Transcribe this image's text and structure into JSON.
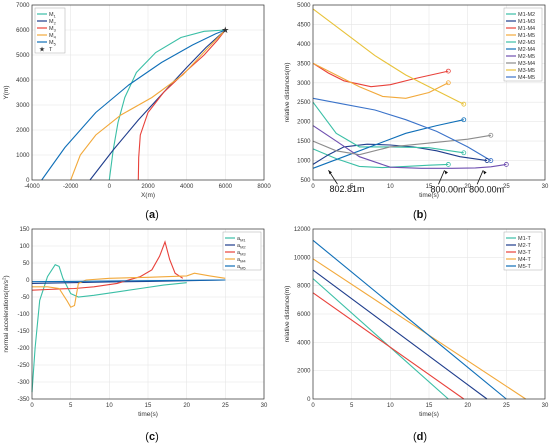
{
  "panels": [
    {
      "id": "a",
      "label": "(a)",
      "chart_data": {
        "type": "line",
        "xlabel": "X(m)",
        "ylabel": "Y(m)",
        "xlim": [
          -4000,
          8000
        ],
        "ylim": [
          0,
          7000
        ],
        "xticks": [
          -4000,
          -2000,
          0,
          2000,
          4000,
          6000,
          8000
        ],
        "yticks": [
          0,
          1000,
          2000,
          3000,
          4000,
          5000,
          6000,
          7000
        ],
        "legend_position": "top-left",
        "series": [
          {
            "name": "M1",
            "color": "#3bbfa6",
            "x": [
              0,
              200,
              450,
              800,
              1400,
              2400,
              3700,
              4900,
              6000
            ],
            "y": [
              0,
              1200,
              2300,
              3300,
              4300,
              5100,
              5700,
              5950,
              6000
            ]
          },
          {
            "name": "M2",
            "color": "#1f3d8c",
            "x": [
              -1000,
              200,
              1500,
              2800,
              4000,
              5000,
              6000
            ],
            "y": [
              0,
              1200,
              2400,
              3500,
              4500,
              5300,
              6000
            ]
          },
          {
            "name": "M3",
            "color": "#e8413a",
            "x": [
              1500,
              1520,
              1600,
              2000,
              2800,
              3900,
              4900,
              5600,
              6000
            ],
            "y": [
              0,
              900,
              1800,
              2700,
              3500,
              4300,
              5000,
              5600,
              6000
            ]
          },
          {
            "name": "M4",
            "color": "#f2a93b",
            "x": [
              -2000,
              -1500,
              -700,
              600,
              2200,
              3800,
              5000,
              6000
            ],
            "y": [
              0,
              1000,
              1800,
              2600,
              3300,
              4200,
              5200,
              6000
            ]
          },
          {
            "name": "M5",
            "color": "#0f6fb8",
            "x": [
              -3500,
              -2300,
              -700,
              1000,
              2700,
              4300,
              5500,
              6000
            ],
            "y": [
              0,
              1300,
              2700,
              3800,
              4700,
              5400,
              5850,
              6000
            ]
          }
        ],
        "target": {
          "name": "T",
          "x": 6000,
          "y": 6000
        }
      }
    },
    {
      "id": "b",
      "label": "(b)",
      "chart_data": {
        "type": "line",
        "xlabel": "time(s)",
        "ylabel": "relative distances(m)",
        "xlim": [
          0,
          30
        ],
        "ylim": [
          500,
          5000
        ],
        "xticks": [
          0,
          5,
          10,
          15,
          20,
          25,
          30
        ],
        "yticks": [
          500,
          1000,
          1500,
          2000,
          2500,
          3000,
          3500,
          4000,
          4500,
          5000
        ],
        "legend_position": "top-right",
        "series": [
          {
            "name": "M1-M2",
            "color": "#3bbfa6",
            "x": [
              0,
              3,
              6,
              9,
              12,
              15,
              17.5
            ],
            "y": [
              1300,
              1050,
              850,
              820,
              850,
              880,
              900
            ]
          },
          {
            "name": "M1-M3",
            "color": "#1f3d8c",
            "x": [
              0,
              2,
              4,
              7,
              10,
              13,
              16,
              19,
              22.5
            ],
            "y": [
              900,
              1150,
              1350,
              1420,
              1400,
              1350,
              1250,
              1100,
              1000
            ]
          },
          {
            "name": "M1-M4",
            "color": "#e8413a",
            "x": [
              0,
              2,
              4,
              7.5,
              10,
              13,
              17.5
            ],
            "y": [
              3500,
              3250,
              3050,
              2900,
              2950,
              3100,
              3300
            ]
          },
          {
            "name": "M1-M5",
            "color": "#f2a93b",
            "x": [
              0,
              3,
              6,
              9,
              12,
              15,
              17.5
            ],
            "y": [
              3500,
              3200,
              2900,
              2650,
              2600,
              2750,
              3000
            ]
          },
          {
            "name": "M2-M3",
            "color": "#3bbfa6",
            "x": [
              0,
              3,
              6,
              10,
              15,
              19.5
            ],
            "y": [
              2500,
              1700,
              1350,
              1350,
              1330,
              1200
            ]
          },
          {
            "name": "M2-M4",
            "color": "#0f6fb8",
            "x": [
              0,
              4,
              8,
              12,
              16,
              19.5
            ],
            "y": [
              800,
              1100,
              1400,
              1700,
              1900,
              2050
            ]
          },
          {
            "name": "M2-M5",
            "color": "#6f4fb0",
            "x": [
              0,
              3,
              6,
              10,
              14,
              18,
              21,
              23,
              25
            ],
            "y": [
              1900,
              1500,
              1100,
              830,
              800,
              800,
              810,
              840,
              900
            ]
          },
          {
            "name": "M3-M4",
            "color": "#8c8c8c",
            "x": [
              0,
              3,
              6,
              10,
              15,
              20,
              23
            ],
            "y": [
              1500,
              1250,
              1150,
              1350,
              1450,
              1550,
              1650
            ]
          },
          {
            "name": "M3-M5",
            "color": "#e8c23a",
            "x": [
              0,
              4,
              8,
              12,
              16,
              19.5
            ],
            "y": [
              4900,
              4300,
              3700,
              3200,
              2800,
              2450
            ]
          },
          {
            "name": "M4-M5",
            "color": "#3b73c9",
            "x": [
              0,
              4,
              8,
              12,
              16,
              20,
              23
            ],
            "y": [
              2600,
              2450,
              2300,
              2050,
              1750,
              1350,
              1000
            ]
          }
        ],
        "annotations": [
          {
            "text": "802.81m",
            "x": 2,
            "y": 802.81
          },
          {
            "text": "800.00m",
            "x": 17,
            "y": 800
          },
          {
            "text": "800.00m",
            "x": 22,
            "y": 800
          }
        ]
      }
    },
    {
      "id": "c",
      "label": "(c)",
      "chart_data": {
        "type": "line",
        "xlabel": "time(s)",
        "ylabel": "normal accelerations(m/s2)",
        "xlim": [
          0,
          30
        ],
        "ylim": [
          -350,
          150
        ],
        "xticks": [
          0,
          5,
          10,
          15,
          20,
          25,
          30
        ],
        "yticks": [
          -350,
          -300,
          -250,
          -200,
          -150,
          -100,
          -50,
          0,
          50,
          100,
          150
        ],
        "legend_position": "top-right",
        "series": [
          {
            "name": "aM1",
            "color": "#3bbfa6",
            "x": [
              0,
              0.4,
              1,
              2,
              3,
              3.5,
              4,
              5,
              6,
              8,
              11,
              14,
              17,
              20
            ],
            "y": [
              -330,
              -200,
              -60,
              10,
              45,
              40,
              5,
              -40,
              -50,
              -45,
              -35,
              -25,
              -15,
              -8
            ]
          },
          {
            "name": "aM2",
            "color": "#1f3d8c",
            "x": [
              0,
              5,
              10,
              15,
              20,
              25
            ],
            "y": [
              -10,
              -8,
              -6,
              -4,
              -2,
              0
            ]
          },
          {
            "name": "aM3",
            "color": "#e8413a",
            "x": [
              0,
              2,
              4,
              5.5,
              8,
              11,
              14,
              15.5,
              16.5,
              17.2,
              17.8,
              18.5,
              19.5
            ],
            "y": [
              -30,
              -28,
              -26,
              -25,
              -20,
              -10,
              10,
              30,
              70,
              112,
              60,
              20,
              5
            ]
          },
          {
            "name": "aM4",
            "color": "#f2a93b",
            "x": [
              0,
              2,
              3.5,
              4.5,
              5,
              5.5,
              6,
              7,
              10,
              15,
              20,
              21,
              23,
              25
            ],
            "y": [
              -20,
              -20,
              -25,
              -60,
              -80,
              -75,
              -10,
              0,
              5,
              8,
              12,
              20,
              12,
              5
            ]
          },
          {
            "name": "aM5",
            "color": "#0f6fb8",
            "x": [
              0,
              5,
              10,
              15,
              20,
              25
            ],
            "y": [
              -5,
              -4,
              -3,
              -2,
              -1,
              0
            ]
          }
        ]
      }
    },
    {
      "id": "d",
      "label": "(d)",
      "chart_data": {
        "type": "line",
        "xlabel": "time(s)",
        "ylabel": "relative distance(m)",
        "xlim": [
          0,
          30
        ],
        "ylim": [
          0,
          12000
        ],
        "xticks": [
          0,
          5,
          10,
          15,
          20,
          25,
          30
        ],
        "yticks": [
          0,
          2000,
          4000,
          6000,
          8000,
          10000,
          12000
        ],
        "legend_position": "top-right",
        "series": [
          {
            "name": "M1-T",
            "color": "#3bbfa6",
            "x": [
              0,
              17.5
            ],
            "y": [
              8500,
              0
            ]
          },
          {
            "name": "M2-T",
            "color": "#1f3d8c",
            "x": [
              0,
              22.5
            ],
            "y": [
              9100,
              0
            ]
          },
          {
            "name": "M3-T",
            "color": "#e8413a",
            "x": [
              0,
              19.5
            ],
            "y": [
              7500,
              0
            ]
          },
          {
            "name": "M4-T",
            "color": "#f2a93b",
            "x": [
              0,
              27.5
            ],
            "y": [
              9900,
              0
            ]
          },
          {
            "name": "M5-T",
            "color": "#0f6fb8",
            "x": [
              0,
              25
            ],
            "y": [
              11200,
              0
            ]
          }
        ]
      }
    }
  ]
}
